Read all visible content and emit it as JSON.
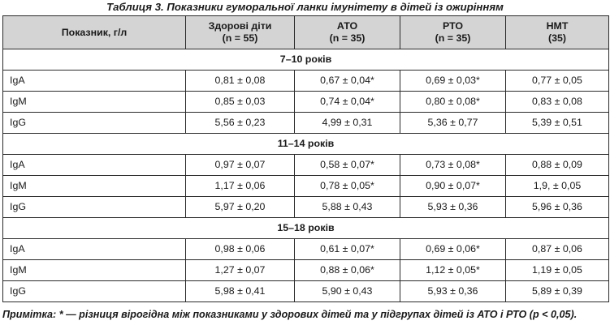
{
  "title": "Таблиця 3.  Показники гуморальної ланки імунітету в дітей із ожирінням",
  "header": {
    "indicator": "Показник, г/л",
    "columns": [
      {
        "name": "Здорові діти",
        "sub": "(n = 55)"
      },
      {
        "name": "АТО",
        "sub": "(n = 35)"
      },
      {
        "name": "РТО",
        "sub": "(n = 35)"
      },
      {
        "name": "НМТ",
        "sub": "(35)"
      }
    ]
  },
  "groups": [
    {
      "label": "7–10 років",
      "rows": [
        {
          "name": "IgA",
          "values": [
            "0,81 ± 0,08",
            "0,67 ± 0,04*",
            "0,69 ± 0,03*",
            "0,77 ± 0,05"
          ]
        },
        {
          "name": "IgM",
          "values": [
            "0,85 ± 0,03",
            "0,74 ± 0,04*",
            "0,80 ± 0,08*",
            "0,83 ± 0,08"
          ]
        },
        {
          "name": "IgG",
          "values": [
            "5,56 ± 0,23",
            "4,99 ± 0,31",
            "5,36 ± 0,77",
            "5,39 ± 0,51"
          ]
        }
      ]
    },
    {
      "label": "11–14 років",
      "rows": [
        {
          "name": "IgA",
          "values": [
            "0,97 ± 0,07",
            "0,58 ± 0,07*",
            "0,73 ± 0,08*",
            "0,88 ± 0,09"
          ]
        },
        {
          "name": "IgM",
          "values": [
            "1,17 ± 0,06",
            "0,78 ± 0,05*",
            "0,90 ± 0,07*",
            "1,9, ± 0,05"
          ]
        },
        {
          "name": "IgG",
          "values": [
            "5,97 ± 0,20",
            "5,88 ± 0,43",
            "5,93 ± 0,36",
            "5,96 ± 0,36"
          ]
        }
      ]
    },
    {
      "label": "15–18 років",
      "rows": [
        {
          "name": "IgA",
          "values": [
            "0,98 ± 0,06",
            "0,61 ± 0,07*",
            "0,69 ± 0,06*",
            "0,87 ± 0,06"
          ]
        },
        {
          "name": "IgM",
          "values": [
            "1,27 ± 0,07",
            "0,88 ± 0,06*",
            "1,12 ± 0,05*",
            "1,19 ± 0,05"
          ]
        },
        {
          "name": "IgG",
          "values": [
            "5,98 ± 0,41",
            "5,90 ± 0,43",
            "5,93 ± 0,36",
            "5,89 ± 0,39"
          ]
        }
      ]
    }
  ],
  "note": "Примітка:  * — різниця вірогідна між показниками у здорових дітей та у підгрупах дітей із АТО і РТО (р < 0,05)."
}
